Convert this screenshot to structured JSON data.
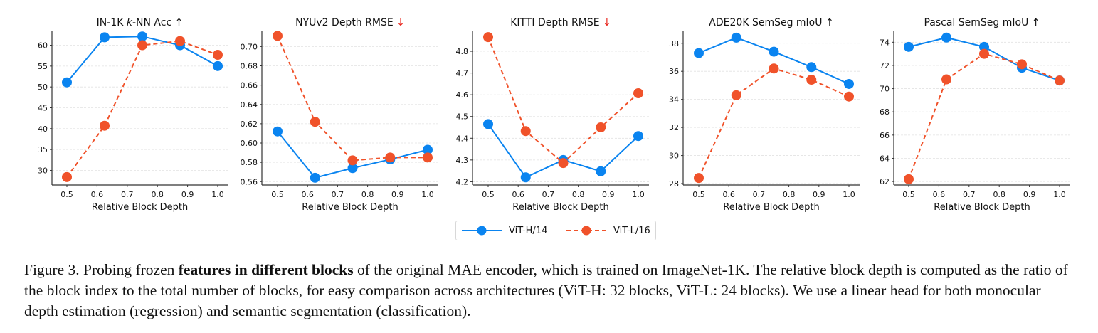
{
  "chart_data": [
    {
      "type": "line",
      "title": "IN-1K k-NN Acc",
      "title_parts": [
        "IN-1K ",
        "k",
        "-NN Acc "
      ],
      "direction_arrow": "↑",
      "direction_color": "#111111",
      "xlabel": "Relative Block Depth",
      "ylabel": "",
      "x": [
        0.5,
        0.625,
        0.75,
        0.875,
        1.0
      ],
      "xticks": [
        "0.5",
        "0.6",
        "0.7",
        "0.8",
        "0.9",
        "1.0"
      ],
      "xtick_values": [
        0.5,
        0.6,
        0.7,
        0.8,
        0.9,
        1.0
      ],
      "yticks": [
        "30",
        "35",
        "40",
        "45",
        "50",
        "55",
        "60"
      ],
      "ytick_values": [
        30,
        35,
        40,
        45,
        50,
        55,
        60
      ],
      "ylim": [
        26.5,
        63.5
      ],
      "grid": true,
      "series": [
        {
          "name": "ViT-H/14",
          "values": [
            51.1,
            61.9,
            62.1,
            60.0,
            55.0
          ]
        },
        {
          "name": "ViT-L/16",
          "values": [
            28.4,
            40.7,
            60.0,
            61.0,
            57.7
          ]
        }
      ]
    },
    {
      "type": "line",
      "title": "NYUv2 Depth RMSE",
      "title_parts": [
        "NYUv2 Depth RMSE "
      ],
      "direction_arrow": "↓",
      "direction_color": "#e8241c",
      "xlabel": "Relative Block Depth",
      "ylabel": "",
      "x": [
        0.5,
        0.625,
        0.75,
        0.875,
        1.0
      ],
      "xticks": [
        "0.5",
        "0.6",
        "0.7",
        "0.8",
        "0.9",
        "1.0"
      ],
      "xtick_values": [
        0.5,
        0.6,
        0.7,
        0.8,
        0.9,
        1.0
      ],
      "yticks": [
        "0.56",
        "0.58",
        "0.60",
        "0.62",
        "0.64",
        "0.66",
        "0.68",
        "0.70"
      ],
      "ytick_values": [
        0.56,
        0.58,
        0.6,
        0.62,
        0.64,
        0.66,
        0.68,
        0.7
      ],
      "ylim": [
        0.5565,
        0.7165
      ],
      "grid": true,
      "series": [
        {
          "name": "ViT-H/14",
          "values": [
            0.612,
            0.564,
            0.574,
            0.583,
            0.593
          ]
        },
        {
          "name": "ViT-L/16",
          "values": [
            0.711,
            0.622,
            0.582,
            0.585,
            0.585
          ]
        }
      ]
    },
    {
      "type": "line",
      "title": "KITTI Depth RMSE",
      "title_parts": [
        "KITTI Depth RMSE "
      ],
      "direction_arrow": "↓",
      "direction_color": "#e8241c",
      "xlabel": "Relative Block Depth",
      "ylabel": "",
      "x": [
        0.5,
        0.625,
        0.75,
        0.875,
        1.0
      ],
      "xticks": [
        "0.5",
        "0.6",
        "0.7",
        "0.8",
        "0.9",
        "1.0"
      ],
      "xtick_values": [
        0.5,
        0.6,
        0.7,
        0.8,
        0.9,
        1.0
      ],
      "yticks": [
        "4.2",
        "4.3",
        "4.4",
        "4.5",
        "4.6",
        "4.7",
        "4.8"
      ],
      "ytick_values": [
        4.2,
        4.3,
        4.4,
        4.5,
        4.6,
        4.7,
        4.8
      ],
      "ylim": [
        4.185,
        4.895
      ],
      "grid": true,
      "series": [
        {
          "name": "ViT-H/14",
          "values": [
            4.465,
            4.22,
            4.3,
            4.248,
            4.41
          ]
        },
        {
          "name": "ViT-L/16",
          "values": [
            4.865,
            4.433,
            4.286,
            4.45,
            4.607
          ]
        }
      ]
    },
    {
      "type": "line",
      "title": "ADE20K SemSeg mIoU",
      "title_parts": [
        "ADE20K SemSeg mIoU "
      ],
      "direction_arrow": "↑",
      "direction_color": "#111111",
      "xlabel": "Relative Block Depth",
      "ylabel": "",
      "x": [
        0.5,
        0.625,
        0.75,
        0.875,
        1.0
      ],
      "xticks": [
        "0.5",
        "0.6",
        "0.7",
        "0.8",
        "0.9",
        "1.0"
      ],
      "xtick_values": [
        0.5,
        0.6,
        0.7,
        0.8,
        0.9,
        1.0
      ],
      "yticks": [
        "28",
        "30",
        "32",
        "34",
        "36",
        "38"
      ],
      "ytick_values": [
        28,
        30,
        32,
        34,
        36,
        38
      ],
      "ylim": [
        27.9,
        38.9
      ],
      "grid": true,
      "series": [
        {
          "name": "ViT-H/14",
          "values": [
            37.3,
            38.4,
            37.4,
            36.3,
            35.1
          ]
        },
        {
          "name": "ViT-L/16",
          "values": [
            28.4,
            34.3,
            36.2,
            35.4,
            34.2
          ]
        }
      ]
    },
    {
      "type": "line",
      "title": "Pascal SemSeg mIoU",
      "title_parts": [
        "Pascal SemSeg mIoU "
      ],
      "direction_arrow": "↑",
      "direction_color": "#111111",
      "xlabel": "Relative Block Depth",
      "ylabel": "",
      "x": [
        0.5,
        0.625,
        0.75,
        0.875,
        1.0
      ],
      "xticks": [
        "0.5",
        "0.6",
        "0.7",
        "0.8",
        "0.9",
        "1.0"
      ],
      "xtick_values": [
        0.5,
        0.6,
        0.7,
        0.8,
        0.9,
        1.0
      ],
      "yticks": [
        "62",
        "64",
        "66",
        "68",
        "70",
        "72",
        "74"
      ],
      "ytick_values": [
        62,
        64,
        66,
        68,
        70,
        72,
        74
      ],
      "ylim": [
        61.7,
        75.0
      ],
      "grid": true,
      "series": [
        {
          "name": "ViT-H/14",
          "values": [
            73.6,
            74.4,
            73.6,
            71.8,
            70.7
          ]
        },
        {
          "name": "ViT-L/16",
          "values": [
            62.2,
            70.8,
            73.0,
            72.1,
            70.7
          ]
        }
      ]
    }
  ],
  "legend": {
    "placement": "bottom-center",
    "entries": [
      {
        "name": "ViT-H/14",
        "color": "#0a84f0",
        "style": "solid"
      },
      {
        "name": "ViT-L/16",
        "color": "#f0522a",
        "style": "dashed"
      }
    ]
  },
  "colors": {
    "vit_h": "#0a84f0",
    "vit_l": "#f0522a",
    "grid": "#e2e2e2",
    "axis": "#333333"
  },
  "caption": {
    "prefix": "Figure 3. Probing frozen ",
    "bold": "features in different blocks",
    "suffix": " of the original MAE encoder, which is trained on ImageNet-1K. The relative block depth is computed as the ratio of the block index to the total number of blocks, for easy comparison across architectures (ViT-H: 32 blocks, ViT-L: 24 blocks). We use a linear head for both monocular depth estimation (regression) and semantic segmentation (classification)."
  }
}
